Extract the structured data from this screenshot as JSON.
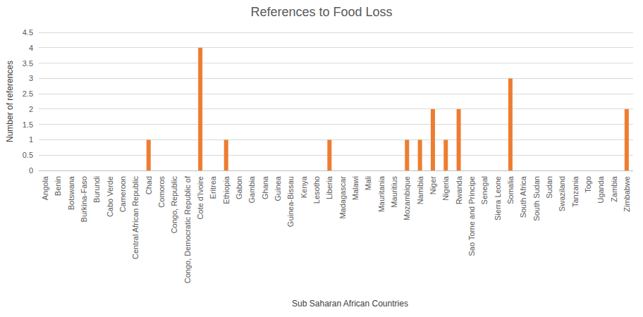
{
  "chart_data": {
    "type": "bar",
    "title": "References to Food Loss",
    "x_label": "Sub Saharan African Countries",
    "y_label": "Number of references",
    "categories": [
      "Angola",
      "Benin",
      "Botswana",
      "Burkina-Faso",
      "Burundi",
      "Cabo Verde",
      "Cameroon",
      "Central African Republic",
      "Chad",
      "Comoros",
      "Congo, Republic",
      "Congo, Democratic Republic of",
      "Cote d'Ivoire",
      "Eritrea",
      "Ethiopia",
      "Gabon",
      "Gambia",
      "Ghana",
      "Guinea",
      "Guinea-Bissau",
      "Kenya",
      "Lesotho",
      "Liberia",
      "Madagascar",
      "Malawi",
      "Mali",
      "Mauritania",
      "Mauritius",
      "Mozambique",
      "Namibia",
      "Niger",
      "Nigeria",
      "Rwanda",
      "Sao Tome and Principe",
      "Senegal",
      "Sierra Leone",
      "Somalia",
      "South Africa",
      "South Sudan",
      "Sudan",
      "Swaziland",
      "Tanzania",
      "Togo",
      "Uganda",
      "Zambia",
      "Zimbabwe"
    ],
    "values": [
      0,
      0,
      0,
      0,
      0,
      0,
      0,
      0,
      1,
      0,
      0,
      0,
      4,
      0,
      1,
      0,
      0,
      0,
      0,
      0,
      0,
      0,
      1,
      0,
      0,
      0,
      0,
      0,
      1,
      1,
      2,
      1,
      2,
      0,
      0,
      0,
      3,
      0,
      0,
      0,
      0,
      0,
      0,
      0,
      0,
      2
    ],
    "color": "#ed7d31",
    "ylim": [
      0,
      4.5
    ],
    "yticks": [
      0,
      0.5,
      1,
      1.5,
      2,
      2.5,
      3,
      3.5,
      4,
      4.5
    ],
    "grid": true
  }
}
